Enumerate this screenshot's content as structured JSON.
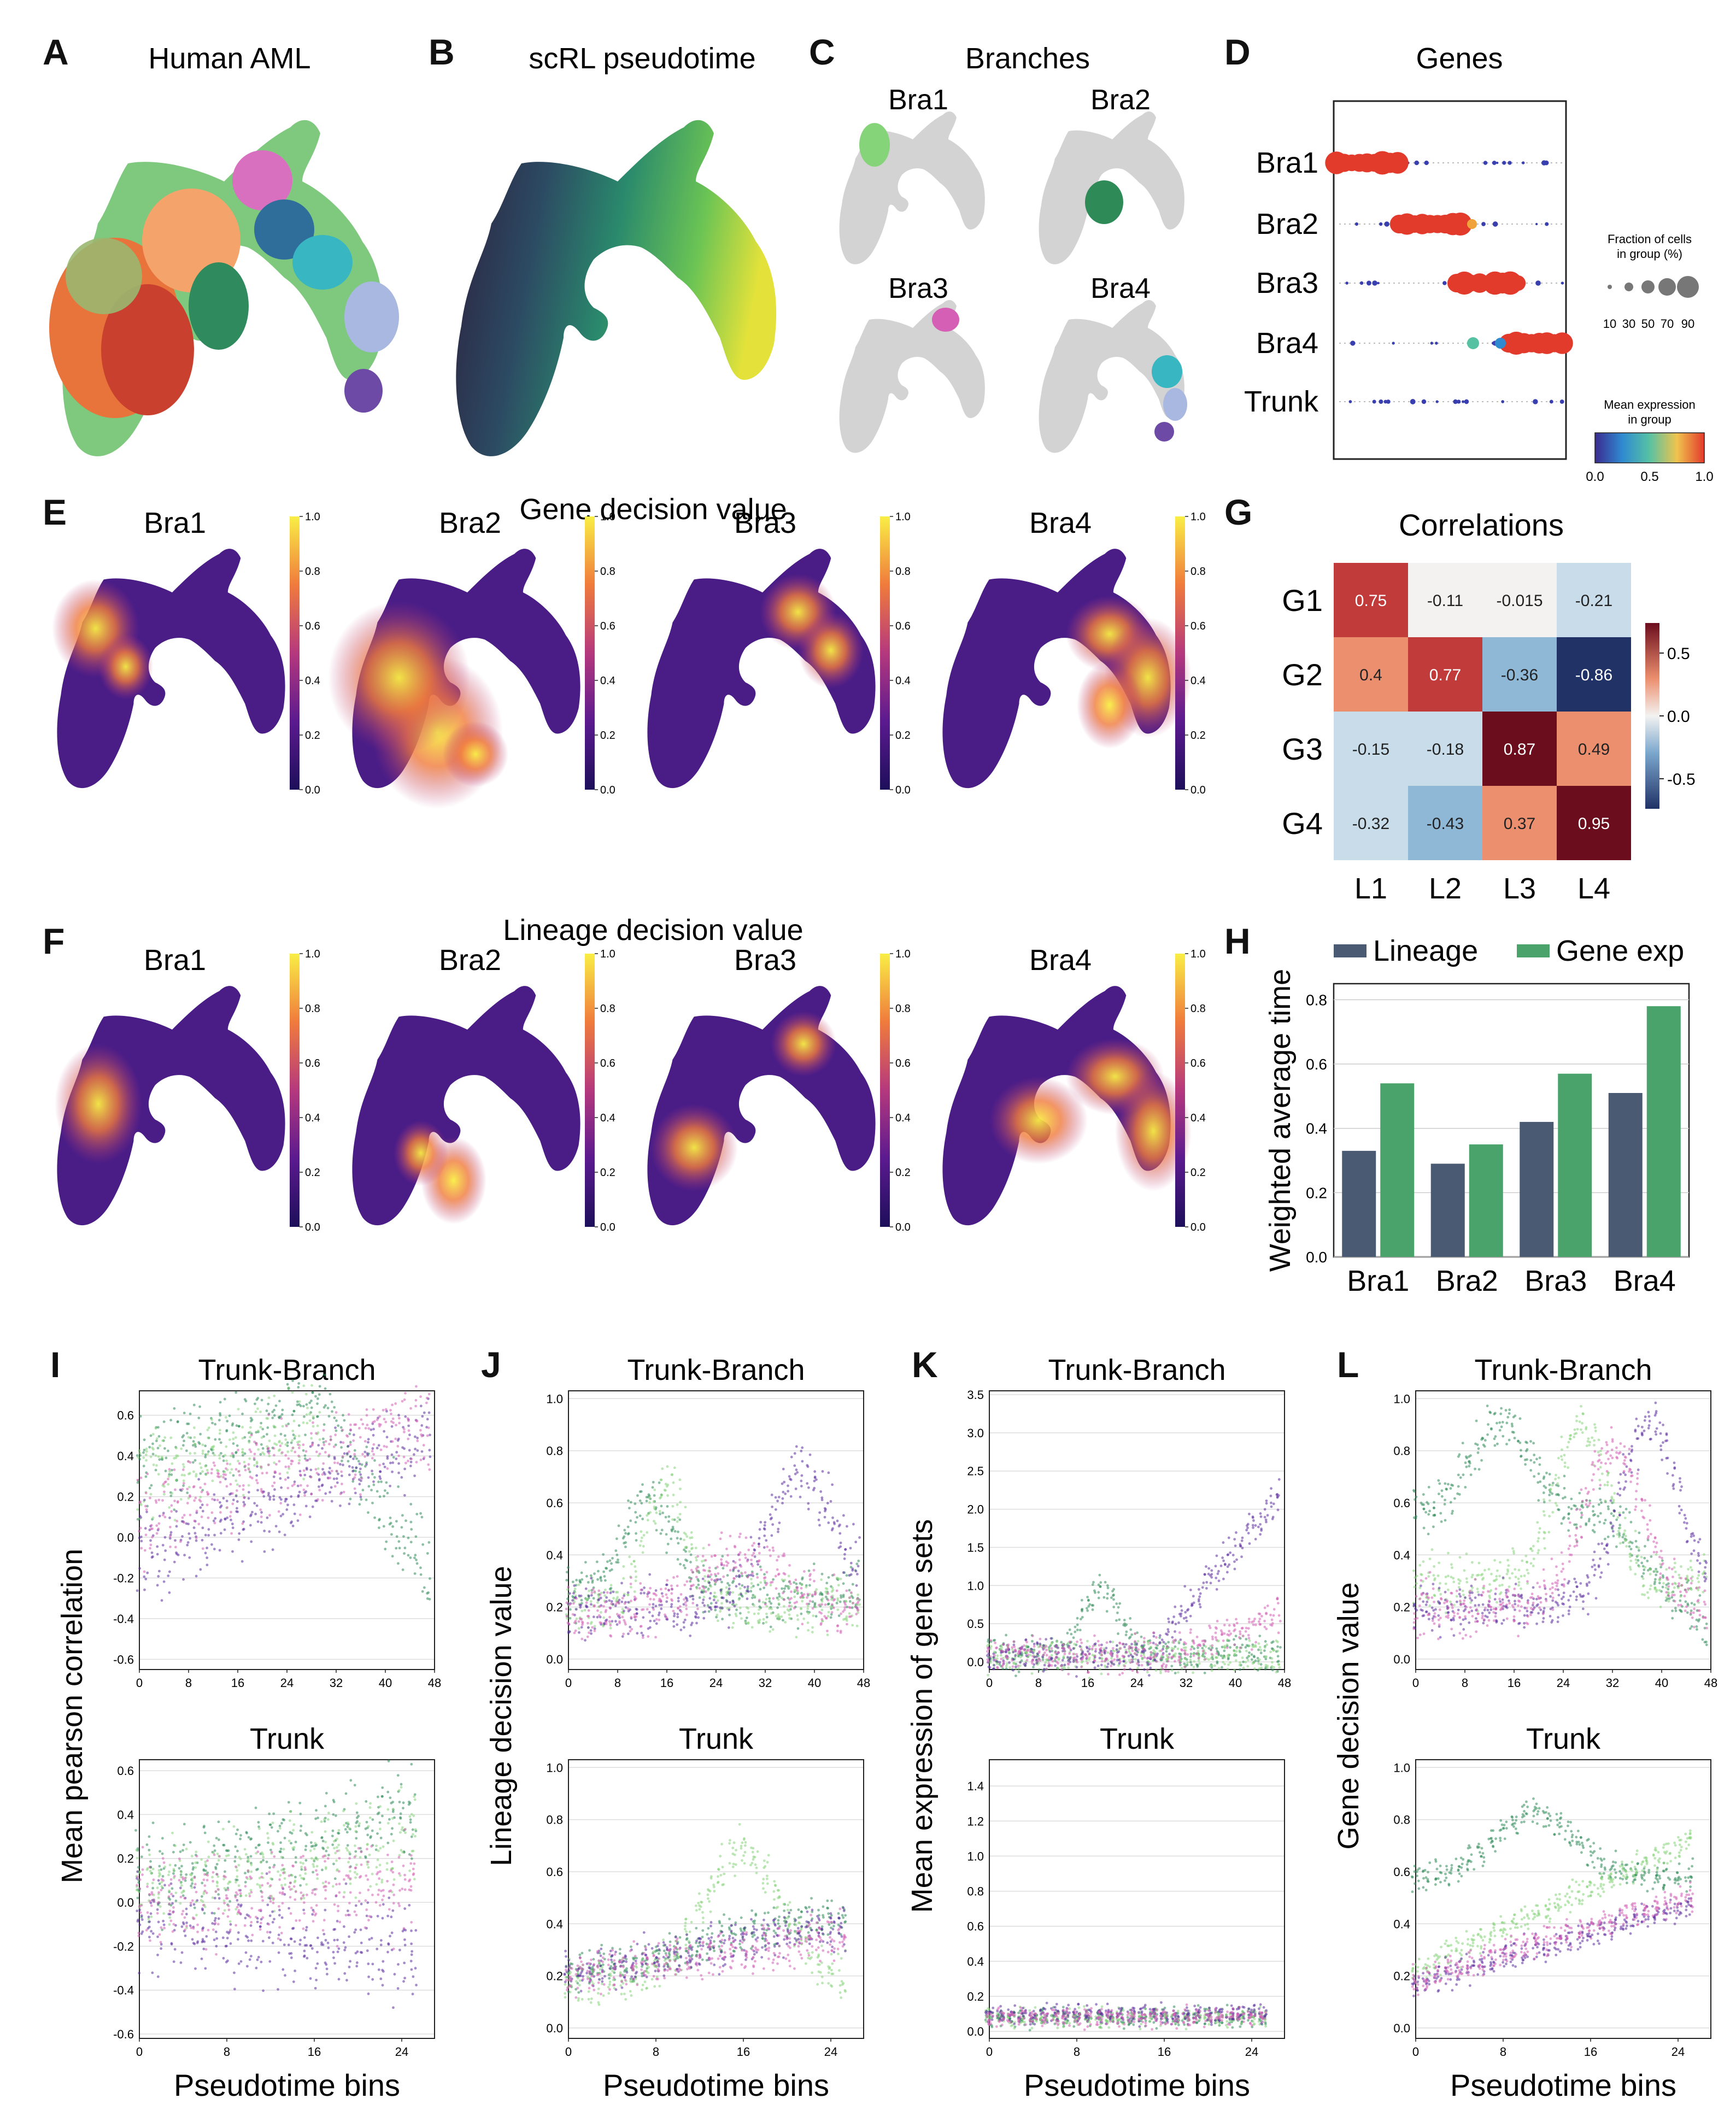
{
  "panel_letters": [
    "A",
    "B",
    "C",
    "D",
    "E",
    "F",
    "G",
    "H",
    "I",
    "J",
    "K",
    "L"
  ],
  "titles": {
    "a": "Human AML",
    "b": "scRL pseudotime",
    "c": "Branches",
    "d": "Genes",
    "e": "Gene decision value",
    "f": "Lineage decision value",
    "g": "Correlations"
  },
  "branch_labels": [
    "Bra1",
    "Bra2",
    "Bra3",
    "Bra4"
  ],
  "dotplot": {
    "rows": [
      "Bra1",
      "Bra2",
      "Bra3",
      "Bra4",
      "Trunk"
    ],
    "size_legend_title": "Fraction of cells\nin group (%)",
    "size_ticks": [
      "10",
      "30",
      "50",
      "70",
      "90"
    ],
    "color_legend_title": "Mean expression\nin group",
    "color_ticks": [
      "0.0",
      "0.5",
      "1.0"
    ]
  },
  "colorbar_ticks": [
    "0.0",
    "0.2",
    "0.4",
    "0.6",
    "0.8",
    "1.0"
  ],
  "colors": {
    "green_dark": "#2e8b57",
    "green_light": "#86d47a",
    "purple": "#5b2c9e",
    "pink": "#d45fb4",
    "bar_lineage": "#4a5a73",
    "bar_gene": "#4aa36b",
    "grey_umap": "#d3d3d3"
  },
  "chart_data": [
    {
      "id": "G",
      "type": "heatmap",
      "title": "Correlations",
      "rows": [
        "G1",
        "G2",
        "G3",
        "G4"
      ],
      "cols": [
        "L1",
        "L2",
        "L3",
        "L4"
      ],
      "values": [
        [
          0.75,
          -0.11,
          -0.015,
          -0.21
        ],
        [
          0.4,
          0.77,
          -0.36,
          -0.86
        ],
        [
          -0.15,
          -0.18,
          0.87,
          0.49
        ],
        [
          -0.32,
          -0.43,
          0.37,
          0.95
        ]
      ],
      "labels": [
        [
          "0.75",
          "-0.11",
          "-0.015",
          "-0.21"
        ],
        [
          "0.4",
          "0.77",
          "-0.36",
          "-0.86"
        ],
        [
          "-0.15",
          "-0.18",
          "0.87",
          "0.49"
        ],
        [
          "-0.32",
          "-0.43",
          "0.37",
          "0.95"
        ]
      ],
      "colorbar_ticks": [
        "0.5",
        "0.0",
        "-0.5"
      ],
      "range": [
        -0.95,
        0.95
      ]
    },
    {
      "id": "H",
      "type": "bar",
      "categories": [
        "Bra1",
        "Bra2",
        "Bra3",
        "Bra4"
      ],
      "series": [
        {
          "name": "Lineage",
          "values": [
            0.33,
            0.29,
            0.42,
            0.51
          ]
        },
        {
          "name": "Gene exp",
          "values": [
            0.54,
            0.35,
            0.57,
            0.78
          ]
        }
      ],
      "ylabel": "Weighted average time",
      "ylim": [
        0,
        0.85
      ],
      "yticks": [
        "0.0",
        "0.2",
        "0.4",
        "0.6",
        "0.8"
      ]
    },
    {
      "id": "I",
      "type": "scatter",
      "ylabel": "Mean pearson correlation",
      "xlabel": "Pseudotime bins",
      "top": {
        "title": "Trunk-Branch",
        "xlim": [
          0,
          48
        ],
        "xticks": [
          "0",
          "8",
          "16",
          "24",
          "32",
          "40",
          "48"
        ],
        "ylim": [
          -0.65,
          0.72
        ],
        "yticks": [
          "-0.6",
          "-0.4",
          "-0.2",
          "0.0",
          "0.2",
          "0.4",
          "0.6"
        ]
      },
      "bottom": {
        "title": "Trunk",
        "xlim": [
          0,
          27
        ],
        "xticks": [
          "0",
          "8",
          "16",
          "24"
        ],
        "ylim": [
          -0.62,
          0.65
        ],
        "yticks": [
          "-0.6",
          "-0.4",
          "-0.2",
          "0.0",
          "0.2",
          "0.4",
          "0.6"
        ]
      }
    },
    {
      "id": "J",
      "type": "scatter",
      "ylabel": "Lineage decision value",
      "xlabel": "Pseudotime bins",
      "top": {
        "title": "Trunk-Branch",
        "xlim": [
          0,
          48
        ],
        "xticks": [
          "0",
          "8",
          "16",
          "24",
          "32",
          "40",
          "48"
        ],
        "ylim": [
          -0.04,
          1.03
        ],
        "yticks": [
          "0.0",
          "0.2",
          "0.4",
          "0.6",
          "0.8",
          "1.0"
        ]
      },
      "bottom": {
        "title": "Trunk",
        "xlim": [
          0,
          27
        ],
        "xticks": [
          "0",
          "8",
          "16",
          "24"
        ],
        "ylim": [
          -0.04,
          1.03
        ],
        "yticks": [
          "0.0",
          "0.2",
          "0.4",
          "0.6",
          "0.8",
          "1.0"
        ]
      }
    },
    {
      "id": "K",
      "type": "scatter",
      "ylabel": "Mean expression of gene sets",
      "xlabel": "Pseudotime bins",
      "top": {
        "title": "Trunk-Branch",
        "xlim": [
          0,
          48
        ],
        "xticks": [
          "0",
          "8",
          "16",
          "24",
          "32",
          "40",
          "48"
        ],
        "ylim": [
          -0.1,
          3.55
        ],
        "yticks": [
          "0.0",
          "0.5",
          "1.0",
          "1.5",
          "2.0",
          "2.5",
          "3.0",
          "3.5"
        ]
      },
      "bottom": {
        "title": "Trunk",
        "xlim": [
          0,
          27
        ],
        "xticks": [
          "0",
          "8",
          "16",
          "24"
        ],
        "ylim": [
          -0.04,
          1.55
        ],
        "yticks": [
          "0.0",
          "0.2",
          "0.4",
          "0.6",
          "0.8",
          "1.0",
          "1.2",
          "1.4"
        ]
      }
    },
    {
      "id": "L",
      "type": "scatter",
      "ylabel": "Gene decision value",
      "xlabel": "Pseudotime bins",
      "top": {
        "title": "Trunk-Branch",
        "xlim": [
          0,
          48
        ],
        "xticks": [
          "0",
          "8",
          "16",
          "24",
          "32",
          "40",
          "48"
        ],
        "ylim": [
          -0.04,
          1.03
        ],
        "yticks": [
          "0.0",
          "0.2",
          "0.4",
          "0.6",
          "0.8",
          "1.0"
        ]
      },
      "bottom": {
        "title": "Trunk",
        "xlim": [
          0,
          27
        ],
        "xticks": [
          "0",
          "8",
          "16",
          "24"
        ],
        "ylim": [
          -0.04,
          1.03
        ],
        "yticks": [
          "0.0",
          "0.2",
          "0.4",
          "0.6",
          "0.8",
          "1.0"
        ]
      }
    }
  ]
}
